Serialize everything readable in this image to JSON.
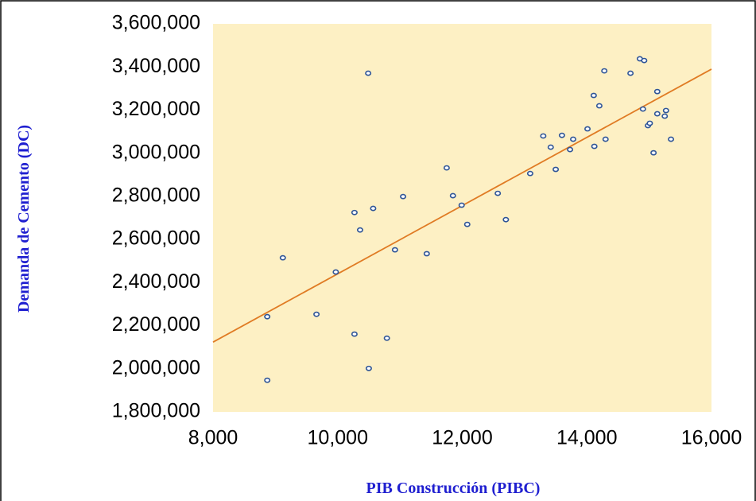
{
  "chart_data": {
    "type": "scatter",
    "xlabel": "PIB Construcción (PIBC)",
    "ylabel": "Demanda de Cemento (DC)",
    "xlim": [
      8000,
      16000
    ],
    "xticks": [
      {
        "value": 8000,
        "label": "8,000"
      },
      {
        "value": 10000,
        "label": "10,000"
      },
      {
        "value": 12000,
        "label": "12,000"
      },
      {
        "value": 14000,
        "label": "14,000"
      },
      {
        "value": 16000,
        "label": "16,000"
      }
    ],
    "ylim": [
      1800000,
      3600000
    ],
    "yticks": [
      {
        "value": 1800000,
        "label": "1,800,000"
      },
      {
        "value": 2000000,
        "label": "2,000,000"
      },
      {
        "value": 2200000,
        "label": "2,200,000"
      },
      {
        "value": 2400000,
        "label": "2,400,000"
      },
      {
        "value": 2600000,
        "label": "2,600,000"
      },
      {
        "value": 2800000,
        "label": "2,800,000"
      },
      {
        "value": 3000000,
        "label": "3,000,000"
      },
      {
        "value": 3200000,
        "label": "3,200,000"
      },
      {
        "value": 3400000,
        "label": "3,400,000"
      },
      {
        "value": 3600000,
        "label": "3,600,000"
      }
    ],
    "background": "#fdf0c4",
    "series": [
      {
        "color": "#2f5597",
        "x": [
          8870,
          8870,
          9120,
          9660,
          9970,
          10270,
          10270,
          10360,
          10490,
          10500,
          10570,
          10790,
          10920,
          11050,
          11430,
          11750,
          11850,
          11990,
          12080,
          12570,
          12700,
          13090,
          13300,
          13420,
          13500,
          13600,
          13730,
          13780,
          14010,
          14110,
          14120,
          14200,
          14280,
          14300,
          14700,
          14850,
          14920,
          14900,
          14980,
          15010,
          15070,
          15130,
          15130,
          15250,
          15270,
          15350
        ],
        "values": [
          1947000,
          2242000,
          2515000,
          2253000,
          2449000,
          2161000,
          2725000,
          2644000,
          3371000,
          2002000,
          2744000,
          2142000,
          2552000,
          2799000,
          2534000,
          2932000,
          2803000,
          2759000,
          2670000,
          2814000,
          2692000,
          2906000,
          3080000,
          3028000,
          2925000,
          3083000,
          3017000,
          3065000,
          3113000,
          3268000,
          3032000,
          3220000,
          3382000,
          3065000,
          3371000,
          3438000,
          3430000,
          3205000,
          3128000,
          3139000,
          3002000,
          3286000,
          3183000,
          3172000,
          3198000,
          3065000
        ]
      }
    ],
    "trendline": {
      "color": "#e07b24",
      "x": [
        8000,
        16000
      ],
      "values": [
        2124000,
        3390000
      ]
    }
  }
}
